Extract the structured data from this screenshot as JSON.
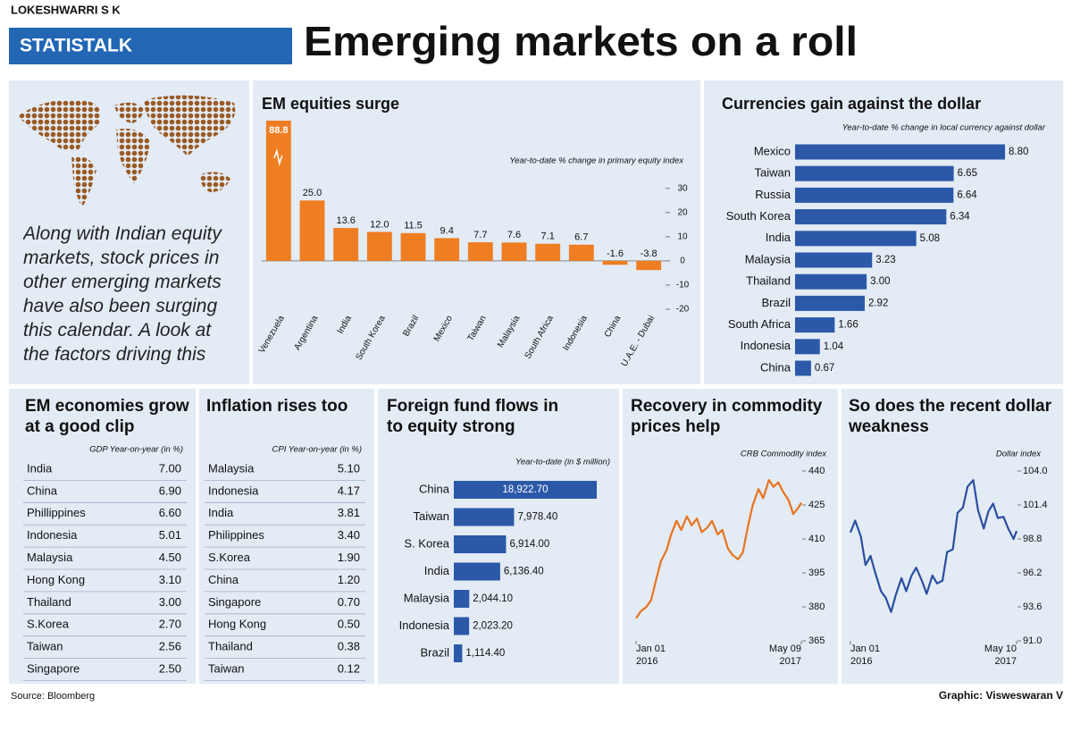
{
  "byline": "LOKESHWARRI S K",
  "section": "STATISTALK",
  "headline": "Emerging markets on a roll",
  "intro": "Along with Indian equity markets, stock prices in other emerging markets have also been surging this calendar. A look at the factors driving this",
  "chart_data": [
    {
      "type": "bar",
      "title": "EM equities surge",
      "subtitle": "Year-to-date % change in primary equity index",
      "categories": [
        "Venezuela",
        "Argentina",
        "India",
        "South Korea",
        "Brazil",
        "Mexico",
        "Taiwan",
        "Malaysia",
        "South Africa",
        "Indonesia",
        "China",
        "U.A.E. - Dubai"
      ],
      "values": [
        88.8,
        25,
        13.6,
        12,
        11.5,
        9.4,
        7.7,
        7.6,
        7.1,
        6.7,
        -1.6,
        -3.8
      ],
      "value_labels": [
        "88.8",
        "25.0",
        "13.6",
        "12.0",
        "11.5",
        "9.4",
        "7.7",
        "7.6",
        "7.1",
        "6.7",
        "-1.6",
        "-3.8"
      ],
      "color": "#ef7d22",
      "ylim": [
        -20,
        58
      ],
      "yticks": [
        30,
        20,
        10,
        0,
        -10,
        -20
      ]
    },
    {
      "type": "hbar",
      "title": "Currencies gain against the dollar",
      "subtitle": "Year-to-date % change in local currency against dollar",
      "categories": [
        "Mexico",
        "Taiwan",
        "Russia",
        "South Korea",
        "India",
        "Malaysia",
        "Thailand",
        "Brazil",
        "South Africa",
        "Indonesia",
        "China"
      ],
      "values": [
        8.8,
        6.65,
        6.64,
        6.34,
        5.08,
        3.23,
        3,
        2.92,
        1.66,
        1.04,
        0.67
      ],
      "value_labels": [
        "8.80",
        "6.65",
        "6.64",
        "6.34",
        "5.08",
        "3.23",
        "3.00",
        "2.92",
        "1.66",
        "1.04",
        "0.67"
      ],
      "color": "#2b59a8"
    },
    {
      "type": "hbar",
      "title": "Foreign fund flows in to equity strong",
      "subtitle": "Year-to-date (in $ million)",
      "categories": [
        "China",
        "Taiwan",
        "S. Korea",
        "India",
        "Malaysia",
        "Indonesia",
        "Brazil"
      ],
      "values": [
        18922.7,
        7978.4,
        6914,
        6136.4,
        2044.1,
        2023.2,
        1114.4
      ],
      "value_labels": [
        "18,922.70",
        "7,978.40",
        "6,914.00",
        "6,136.40",
        "2,044.10",
        "2,023.20",
        "1,114.40"
      ],
      "color": "#2b59a8"
    },
    {
      "type": "line",
      "title": "Recovery in commodity prices help",
      "subtitle": "CRB Commodity index",
      "x": [
        "2016-01-01",
        "2016-01-15",
        "2016-02-01",
        "2016-02-15",
        "2016-03-01",
        "2016-03-15",
        "2016-04-01",
        "2016-04-15",
        "2016-05-01",
        "2016-05-15",
        "2016-06-01",
        "2016-06-15",
        "2016-07-01",
        "2016-07-15",
        "2016-08-01",
        "2016-08-15",
        "2016-09-01",
        "2016-09-15",
        "2016-10-01",
        "2016-10-15",
        "2016-11-01",
        "2016-11-15",
        "2016-12-01",
        "2016-12-15",
        "2017-01-01",
        "2017-01-15",
        "2017-02-01",
        "2017-02-15",
        "2017-03-01",
        "2017-03-15",
        "2017-04-01",
        "2017-04-15",
        "2017-05-01",
        "2017-05-09"
      ],
      "values": [
        375,
        378,
        380,
        383,
        392,
        400,
        405,
        412,
        418,
        414,
        420,
        416,
        419,
        413,
        415,
        418,
        412,
        414,
        406,
        403,
        401,
        404,
        416,
        425,
        432,
        428,
        436,
        433,
        435,
        431,
        427,
        421,
        424,
        426
      ],
      "color": "#e8731f",
      "xlim": [
        "2016-01-01",
        "2017-05-09"
      ],
      "xticks": [
        {
          "value": "2016-01-01",
          "label": "Jan 01\n2016"
        },
        {
          "value": "2017-05-09",
          "label": "May 09\n2017"
        }
      ],
      "ylim": [
        365,
        440
      ],
      "yticks": [
        440,
        425,
        410,
        395,
        380,
        365
      ]
    },
    {
      "type": "line",
      "title": "So does the recent dollar weakness",
      "subtitle": "Dollar index",
      "x": [
        "2016-01-01",
        "2016-01-15",
        "2016-02-01",
        "2016-02-15",
        "2016-03-01",
        "2016-03-15",
        "2016-04-01",
        "2016-04-15",
        "2016-05-01",
        "2016-05-15",
        "2016-06-01",
        "2016-06-15",
        "2016-07-01",
        "2016-07-15",
        "2016-08-01",
        "2016-08-15",
        "2016-09-01",
        "2016-09-15",
        "2016-10-01",
        "2016-10-15",
        "2016-11-01",
        "2016-11-15",
        "2016-12-01",
        "2016-12-15",
        "2017-01-01",
        "2017-01-15",
        "2017-02-01",
        "2017-02-15",
        "2017-03-01",
        "2017-03-15",
        "2017-04-01",
        "2017-04-15",
        "2017-05-01",
        "2017-05-10"
      ],
      "values": [
        99.3,
        100.2,
        99,
        96.8,
        97.5,
        96.2,
        94.8,
        94.3,
        93.2,
        94.5,
        95.8,
        94.8,
        96,
        96.6,
        95.6,
        94.6,
        96,
        95.4,
        95.6,
        97.8,
        98,
        100.8,
        101.2,
        102.8,
        103.3,
        101,
        99.6,
        100.9,
        101.5,
        100.4,
        100.5,
        99.6,
        98.8,
        99.4
      ],
      "color": "#2a4fa0",
      "xlim": [
        "2016-01-01",
        "2017-05-10"
      ],
      "xticks": [
        {
          "value": "2016-01-01",
          "label": "Jan 01\n2016"
        },
        {
          "value": "2017-05-10",
          "label": "May 10\n2017"
        }
      ],
      "ylim": [
        91,
        104
      ],
      "yticks": [
        {
          "value": 104,
          "label": "104.0"
        },
        101.4,
        98.8,
        96.2,
        93.6,
        {
          "value": 91,
          "label": "91.0"
        }
      ]
    }
  ],
  "tables": [
    {
      "title": "EM economies grow at a good clip",
      "subtitle": "GDP Year-on-year (in %)",
      "rows": [
        [
          "India",
          "7.00"
        ],
        [
          "China",
          "6.90"
        ],
        [
          "Phillippines",
          "6.60"
        ],
        [
          "Indonesia",
          "5.01"
        ],
        [
          "Malaysia",
          "4.50"
        ],
        [
          "Hong Kong",
          "3.10"
        ],
        [
          "Thailand",
          "3.00"
        ],
        [
          "S.Korea",
          "2.70"
        ],
        [
          "Taiwan",
          "2.56"
        ],
        [
          "Singapore",
          "2.50"
        ]
      ]
    },
    {
      "title": "Inflation rises too",
      "subtitle": "CPI Year-on-year (in %)",
      "rows": [
        [
          "Malaysia",
          "5.10"
        ],
        [
          "Indonesia",
          "4.17"
        ],
        [
          "India",
          "3.81"
        ],
        [
          "Philippines",
          "3.40"
        ],
        [
          "S.Korea",
          "1.90"
        ],
        [
          "China",
          "1.20"
        ],
        [
          "Singapore",
          "0.70"
        ],
        [
          "Hong Kong",
          "0.50"
        ],
        [
          "Thailand",
          "0.38"
        ],
        [
          "Taiwan",
          "0.12"
        ]
      ]
    }
  ],
  "source": "Source: Bloomberg",
  "credit": "Graphic: Visweswaran V"
}
